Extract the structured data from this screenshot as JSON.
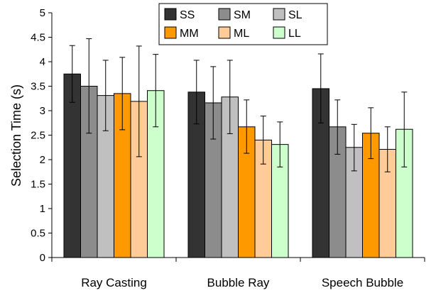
{
  "chart_data": {
    "type": "bar",
    "title": "",
    "xlabel": "",
    "ylabel": "Selection Time (s)",
    "ylim": [
      0,
      5
    ],
    "yticks": [
      "0",
      "0.5",
      "1",
      "1.5",
      "2",
      "2.5",
      "3",
      "3.5",
      "4",
      "4.5",
      "5"
    ],
    "grid": false,
    "legend_position": "top-center",
    "categories": [
      "Ray Casting",
      "Bubble Ray",
      "Speech Bubble"
    ],
    "series": [
      {
        "name": "SS",
        "color": "#333333",
        "values": [
          3.75,
          3.38,
          3.45
        ],
        "error_low": [
          3.17,
          2.73,
          2.75
        ],
        "error_high": [
          4.33,
          4.03,
          4.16
        ]
      },
      {
        "name": "SM",
        "color": "#8c8c8c",
        "values": [
          3.5,
          3.16,
          2.67
        ],
        "error_low": [
          2.54,
          2.42,
          2.11
        ],
        "error_high": [
          4.47,
          3.9,
          3.22
        ]
      },
      {
        "name": "SL",
        "color": "#c0c0c0",
        "values": [
          3.31,
          3.28,
          2.25
        ],
        "error_low": [
          2.59,
          2.53,
          1.77
        ],
        "error_high": [
          4.03,
          4.03,
          2.72
        ]
      },
      {
        "name": "MM",
        "color": "#ff9900",
        "values": [
          3.35,
          2.67,
          2.54
        ],
        "error_low": [
          2.61,
          2.13,
          2.02
        ],
        "error_high": [
          4.09,
          3.22,
          3.06
        ]
      },
      {
        "name": "ML",
        "color": "#ffcc99",
        "values": [
          3.19,
          2.4,
          2.21
        ],
        "error_low": [
          2.06,
          1.91,
          1.75
        ],
        "error_high": [
          4.32,
          2.89,
          2.67
        ]
      },
      {
        "name": "LL",
        "color": "#ccffcc",
        "values": [
          3.41,
          2.31,
          2.62
        ],
        "error_low": [
          2.67,
          1.85,
          1.85
        ],
        "error_high": [
          4.15,
          2.77,
          3.38
        ]
      }
    ]
  }
}
